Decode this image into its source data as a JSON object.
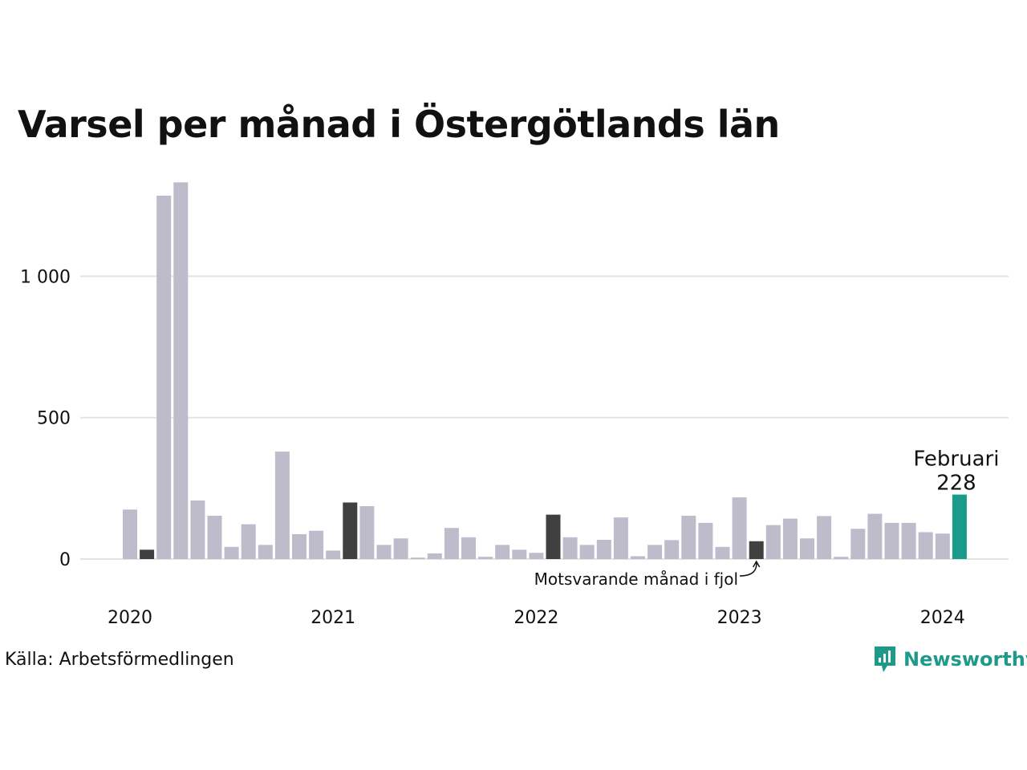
{
  "title": "Varsel per månad i Östergötlands län",
  "source": "Källa: Arbetsförmedlingen",
  "brand": "Newsworthy",
  "colors": {
    "default_bar": "#bebbca",
    "comparison_bar": "#404040",
    "highlight_bar": "#1a9a8b",
    "grid": "#e3e3e3",
    "brand": "#1f9a8a"
  },
  "chart_data": {
    "type": "bar",
    "x_tick_labels": [
      "2020",
      "2021",
      "2022",
      "2023",
      "2024"
    ],
    "y_ticks": [
      {
        "value": 0,
        "label": "0"
      },
      {
        "value": 500,
        "label": "500"
      },
      {
        "value": 1000,
        "label": "1 000"
      }
    ],
    "ylim": [
      0,
      1340
    ],
    "grid": true,
    "series": [
      {
        "values": [
          175,
          33,
          1285,
          1332,
          207,
          153,
          43,
          123,
          50,
          380,
          88,
          100,
          30,
          200,
          187,
          50,
          73,
          5,
          20,
          110,
          77,
          8,
          50,
          33,
          22,
          157,
          77,
          50,
          68,
          147,
          10,
          50,
          67,
          153,
          128,
          43,
          218,
          63,
          120,
          143,
          73,
          152,
          8,
          107,
          160,
          128,
          128,
          95,
          90,
          228
        ]
      }
    ],
    "comparison_indices": [
      1,
      13,
      25,
      37
    ],
    "highlight_index": 49,
    "annotations": {
      "highlight_label": "Februari",
      "highlight_value": "228",
      "comparison_label": "Motsvarande månad i fjol"
    }
  }
}
